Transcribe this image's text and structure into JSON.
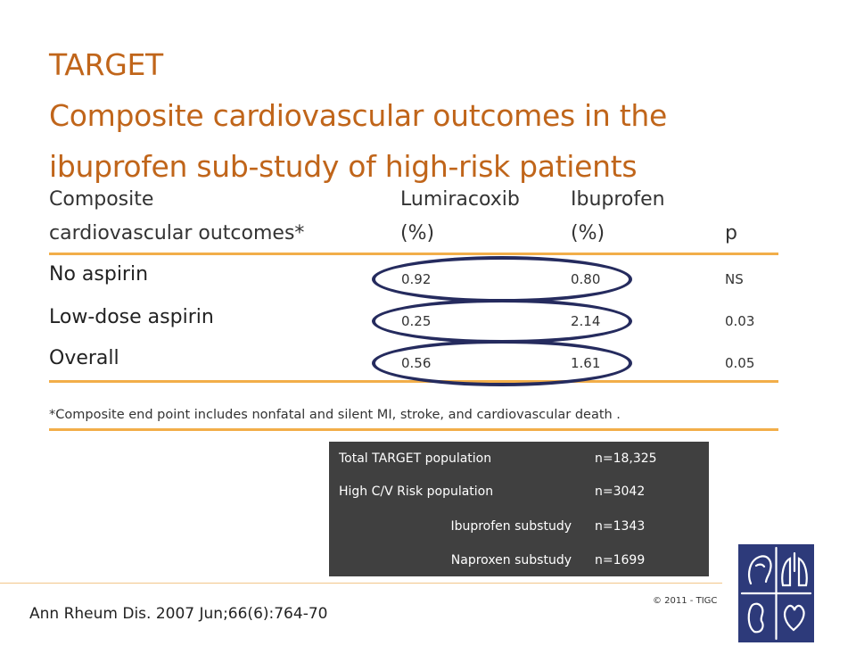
{
  "title": {
    "line1": "TARGET",
    "line2": "Composite cardiovascular outcomes in the",
    "line3": "ibuprofen sub-study of high-risk patients"
  },
  "table": {
    "headers": {
      "col1_line1": "Composite",
      "col1_line2": "cardiovascular outcomes*",
      "col2_line1": "Lumiracoxib",
      "col2_line2": "(%)",
      "col3_line1": "Ibuprofen",
      "col3_line2": "(%)",
      "col4": "p"
    },
    "rows": [
      {
        "label": "No aspirin",
        "lumiracoxib": "0.92",
        "ibuprofen": "0.80",
        "p": "NS"
      },
      {
        "label": "Low-dose aspirin",
        "lumiracoxib": "0.25",
        "ibuprofen": "2.14",
        "p": "0.03"
      },
      {
        "label": "Overall",
        "lumiracoxib": "0.56",
        "ibuprofen": "1.61",
        "p": "0.05"
      }
    ],
    "footnote": "*Composite end point includes nonfatal and silent MI, stroke, and cardiovascular death ."
  },
  "population": [
    {
      "label": "Total TARGET population",
      "value": "n=18,325"
    },
    {
      "label": "High C/V Risk population",
      "value": "n=3042"
    },
    {
      "label": "Ibuprofen substudy",
      "value": "n=1343"
    },
    {
      "label": "Naproxen substudy",
      "value": "n=1699"
    }
  ],
  "citation": "Ann Rheum Dis. 2007 Jun;66(6):764-70",
  "copyright": "© 2011 - TIGC",
  "colors": {
    "title": "#C0651A",
    "rule": "#F2AE49",
    "ellipse": "#252B5E",
    "box": "#404040",
    "logo": "#2D3A7A"
  },
  "logo": {
    "icon": "anatomy-logo-icon"
  }
}
